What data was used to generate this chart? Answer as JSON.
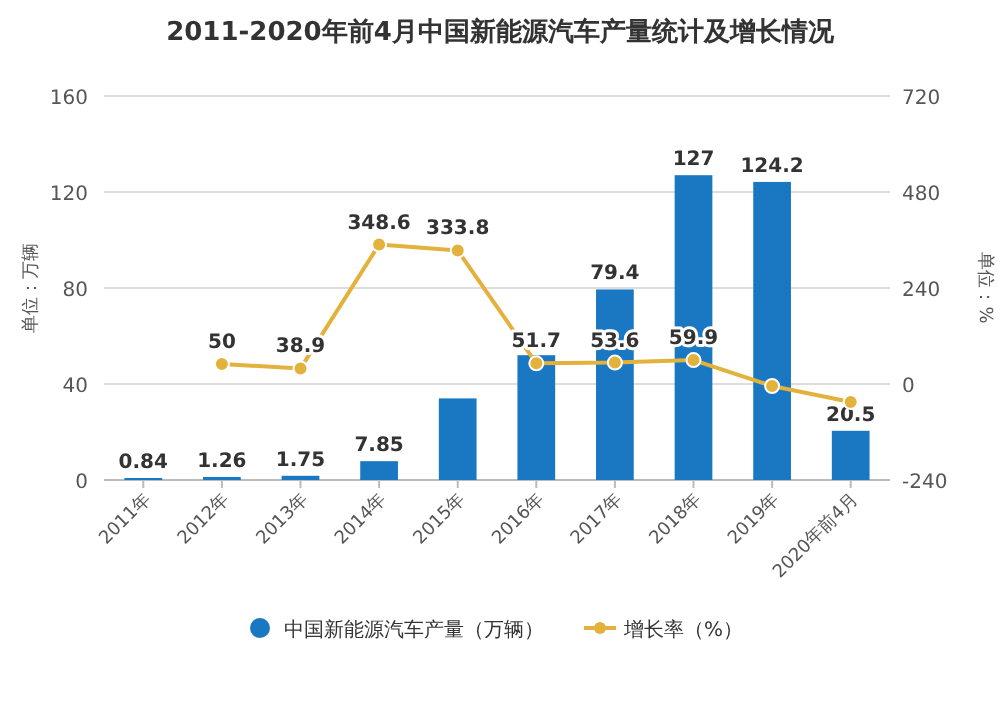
{
  "chart_data": {
    "type": "bar",
    "title": "2011-2020年前4月中国新能源汽车产量统计及增长情况",
    "ylabel": "单位：万辆",
    "y2label": "单位：%",
    "categories": [
      "2011年",
      "2012年",
      "2013年",
      "2014年",
      "2015年",
      "2016年",
      "2017年",
      "2018年",
      "2019年",
      "2020年前4月"
    ],
    "series": [
      {
        "name": "中国新能源汽车产量（万辆）",
        "color": "#1a78c2",
        "values": [
          0.84,
          1.26,
          1.75,
          7.85,
          34,
          52,
          79.4,
          127,
          124.2,
          20.5
        ],
        "value_labels": [
          "0.84",
          "1.26",
          "1.75",
          "7.85",
          null,
          null,
          "79.4",
          "127",
          "124.2",
          "20.5"
        ]
      },
      {
        "name": "增长率（%）",
        "type": "line",
        "axis": "y2",
        "color": "#e3b23c",
        "marker": "circle",
        "values": [
          null,
          50,
          38.9,
          348.6,
          333.8,
          51.7,
          53.6,
          59.9,
          -5,
          -45
        ],
        "value_labels": [
          null,
          "50",
          "38.9",
          "348.6",
          "333.8",
          "51.7",
          "53.6",
          "59.9",
          null,
          null
        ]
      }
    ],
    "ylim": [
      0,
      160
    ],
    "yticks": [
      0,
      40,
      80,
      120,
      160
    ],
    "y2lim": [
      -240,
      720
    ],
    "y2ticks": [
      -240,
      0,
      240,
      480,
      720
    ],
    "grid": "y",
    "legend": "bottom"
  }
}
